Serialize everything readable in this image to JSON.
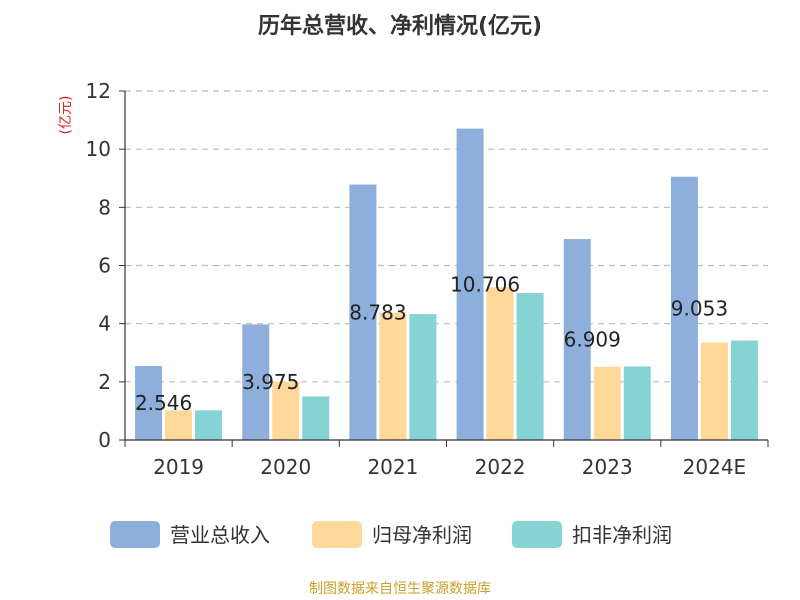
{
  "chart_data": {
    "type": "bar",
    "title": "历年总营收、净利情况(亿元)",
    "ylabel": "(亿元)",
    "xlabel": "",
    "categories": [
      "2019",
      "2020",
      "2021",
      "2022",
      "2023",
      "2024E"
    ],
    "ylim": [
      0,
      12
    ],
    "yticks": [
      "0",
      "2",
      "4",
      "6",
      "8",
      "10",
      "12"
    ],
    "grid": true,
    "legend_position": "bottom",
    "series": [
      {
        "name": "营业总收入",
        "color": "#8eaedc",
        "values": [
          2.546,
          3.975,
          8.783,
          10.706,
          6.909,
          9.053
        ],
        "labels": [
          "2.546",
          "3.975",
          "8.783",
          "10.706",
          "6.909",
          "9.053"
        ]
      },
      {
        "name": "归母净利润",
        "color": "#fdd898",
        "values": [
          1.02,
          2.0,
          4.38,
          5.25,
          2.52,
          3.35
        ]
      },
      {
        "name": "扣非净利润",
        "color": "#86d3d6",
        "values": [
          1.02,
          1.5,
          4.33,
          5.05,
          2.53,
          3.42
        ]
      }
    ]
  },
  "source_text": "制图数据来自恒生聚源数据库"
}
